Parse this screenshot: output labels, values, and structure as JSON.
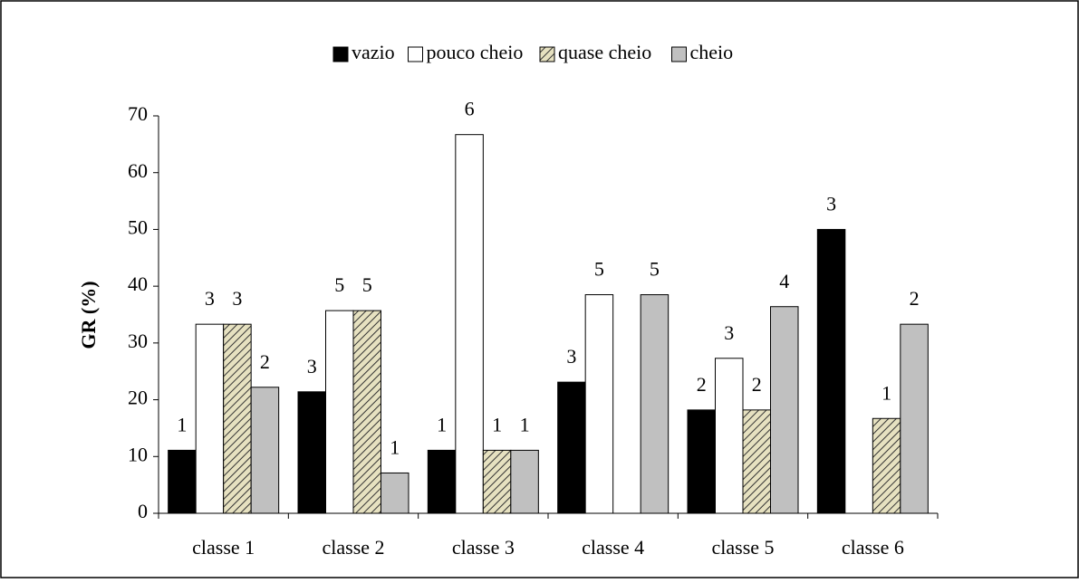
{
  "chart_data": {
    "type": "bar",
    "y_label": "GR (%)",
    "categories": [
      "classe 1",
      "classe 2",
      "classe 3",
      "classe 4",
      "classe 5",
      "classe 6"
    ],
    "series": [
      {
        "name": "vazio",
        "color": "#000000",
        "values": [
          11.1,
          21.4,
          11.1,
          23.1,
          18.2,
          50
        ],
        "counts": [
          1,
          3,
          1,
          3,
          2,
          3
        ]
      },
      {
        "name": "pouco cheio",
        "color": "#ffffff",
        "values": [
          33.3,
          35.7,
          66.7,
          38.5,
          27.3,
          null
        ],
        "counts": [
          3,
          5,
          6,
          5,
          3,
          null
        ]
      },
      {
        "name": "quase cheio",
        "color": "#e6e1c0",
        "hatch": true,
        "values": [
          33.3,
          35.7,
          11.1,
          null,
          18.2,
          16.7
        ],
        "counts": [
          3,
          5,
          1,
          null,
          2,
          1
        ]
      },
      {
        "name": "cheio",
        "color": "#c0c0c0",
        "values": [
          22.2,
          7.1,
          11.1,
          38.5,
          36.4,
          33.3
        ],
        "counts": [
          2,
          1,
          1,
          5,
          4,
          2
        ]
      }
    ],
    "ylim": [
      0,
      70
    ],
    "yticks": [
      0,
      10,
      20,
      30,
      40,
      50,
      60,
      70
    ],
    "grid": false,
    "legend": "top"
  }
}
